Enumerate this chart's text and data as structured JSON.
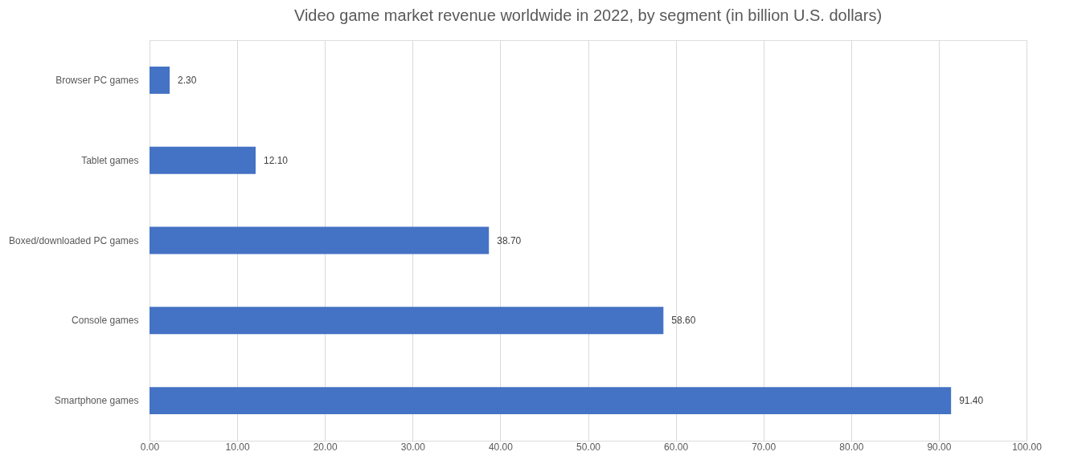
{
  "chart_data": {
    "type": "bar",
    "orientation": "horizontal",
    "title": "Video game market revenue worldwide in 2022, by segment (in billion U.S. dollars)",
    "categories": [
      "Browser PC games",
      "Tablet games",
      "Boxed/downloaded PC games",
      "Console games",
      "Smartphone games"
    ],
    "values": [
      2.3,
      12.1,
      38.7,
      58.6,
      91.4
    ],
    "value_labels": [
      "2.30",
      "12.10",
      "38.70",
      "58.60",
      "91.40"
    ],
    "color": "#4472c4",
    "xlim": [
      0,
      100
    ],
    "xticks": [
      {
        "value": 0,
        "label": "0.00"
      },
      {
        "value": 10,
        "label": "10.00"
      },
      {
        "value": 20,
        "label": "20.00"
      },
      {
        "value": 30,
        "label": "30.00"
      },
      {
        "value": 40,
        "label": "40.00"
      },
      {
        "value": 50,
        "label": "50.00"
      },
      {
        "value": 60,
        "label": "60.00"
      },
      {
        "value": 70,
        "label": "70.00"
      },
      {
        "value": 80,
        "label": "80.00"
      },
      {
        "value": 90,
        "label": "90.00"
      },
      {
        "value": 100,
        "label": "100.00"
      }
    ],
    "grid": "x"
  }
}
